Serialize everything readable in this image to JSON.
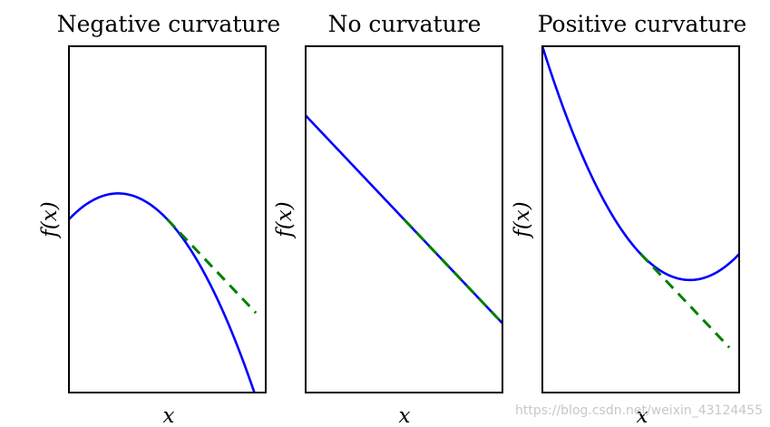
{
  "chart_data": [
    {
      "type": "line",
      "title": "Negative curvature",
      "xlabel": "x",
      "ylabel": "f(x)",
      "xlim": [
        0,
        1
      ],
      "ylim": [
        0,
        1
      ],
      "curve": {
        "kind": "quadratic",
        "a": -1.2,
        "b": 0.6,
        "c": 0.5
      },
      "tangent_x0": 0.5,
      "tangent_x_range": [
        0.5,
        0.95
      ],
      "curve_color": "#0000ff",
      "tangent_color": "#008000"
    },
    {
      "type": "line",
      "title": "No curvature",
      "xlabel": "x",
      "ylabel": "f(x)",
      "xlim": [
        0,
        1
      ],
      "ylim": [
        0,
        1
      ],
      "curve": {
        "kind": "quadratic",
        "a": 0,
        "b": -0.6,
        "c": 0.8
      },
      "tangent_x0": 0.5,
      "tangent_x_range": [
        0.5,
        1.0
      ],
      "curve_color": "#0000ff",
      "tangent_color": "#008000"
    },
    {
      "type": "line",
      "title": "Positive curvature",
      "xlabel": "x",
      "ylabel": "f(x)",
      "xlim": [
        0,
        1
      ],
      "ylim": [
        0,
        1
      ],
      "curve": {
        "kind": "quadratic",
        "a": 1.2,
        "b": -1.8,
        "c": 1.0
      },
      "tangent_x0": 0.5,
      "tangent_x_range": [
        0.5,
        0.95
      ],
      "curve_color": "#0000ff",
      "tangent_color": "#008000"
    }
  ],
  "watermark": "https://blog.csdn.net/weixin_43124455"
}
